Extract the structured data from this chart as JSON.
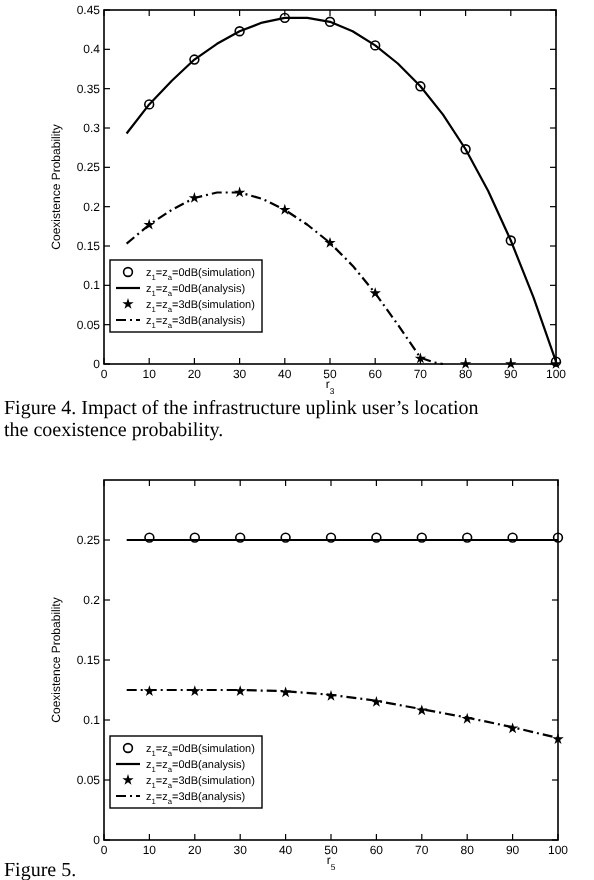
{
  "chart_data": [
    {
      "type": "line",
      "xlabel": "r$_{3}$",
      "ylabel": "Coexistence Probability",
      "xlim": [
        0,
        100
      ],
      "ylim": [
        0,
        0.45
      ],
      "xticks": [
        0,
        10,
        20,
        30,
        40,
        50,
        60,
        70,
        80,
        90,
        100
      ],
      "yticks": [
        0,
        0.05,
        0.1,
        0.15,
        0.2,
        0.25,
        0.3,
        0.35,
        0.4,
        0.45
      ],
      "legend": "bottom left",
      "annotations": [
        "Figure 4. Impact of the infrastructure uplink user’s location",
        "the coexistence probability."
      ],
      "series": [
        {
          "name": "z$_{1}$=z$_{a}$=0dB(simulation)",
          "type": "scatter",
          "marker": "circle",
          "color": "#000000",
          "x": [
            10,
            20,
            30,
            40,
            50,
            60,
            70,
            80,
            90,
            100
          ],
          "values": [
            0.33,
            0.387,
            0.423,
            0.44,
            0.435,
            0.405,
            0.353,
            0.273,
            0.157,
            0.003
          ]
        },
        {
          "name": "z$_{1}$=z$_{a}$=0dB(analysis)",
          "type": "line",
          "line_style": "solid",
          "color": "#000000",
          "x": [
            5,
            10,
            15,
            20,
            25,
            30,
            35,
            40,
            45,
            50,
            55,
            60,
            65,
            70,
            75,
            80,
            85,
            90,
            95,
            100
          ],
          "values": [
            0.293,
            0.33,
            0.36,
            0.387,
            0.407,
            0.423,
            0.434,
            0.44,
            0.44,
            0.435,
            0.423,
            0.405,
            0.382,
            0.353,
            0.317,
            0.273,
            0.22,
            0.157,
            0.085,
            0.003
          ]
        },
        {
          "name": "z$_{1}$=z$_{a}$=3dB(simulation)",
          "type": "scatter",
          "marker": "star",
          "color": "#000000",
          "x": [
            10,
            20,
            30,
            40,
            50,
            60,
            70,
            80,
            90,
            100
          ],
          "values": [
            0.177,
            0.211,
            0.218,
            0.196,
            0.154,
            0.09,
            0.007,
            0,
            0,
            0
          ]
        },
        {
          "name": "z$_{1}$=z$_{a}$=3dB(analysis)",
          "type": "line",
          "line_style": "dashed",
          "color": "#000000",
          "x": [
            5,
            10,
            15,
            20,
            25,
            30,
            35,
            40,
            45,
            50,
            55,
            60,
            65,
            70,
            73,
            75
          ],
          "values": [
            0.153,
            0.177,
            0.196,
            0.211,
            0.218,
            0.218,
            0.21,
            0.196,
            0.177,
            0.154,
            0.125,
            0.09,
            0.05,
            0.008,
            0.002,
            0
          ]
        }
      ]
    },
    {
      "type": "line",
      "xlabel": "r$_{5}$",
      "ylabel": "Coexistence Probability",
      "xlim": [
        0,
        100
      ],
      "ylim": [
        0,
        0.3
      ],
      "xticks": [
        0,
        10,
        20,
        30,
        40,
        50,
        60,
        70,
        80,
        90,
        100
      ],
      "yticks": [
        0,
        0.05,
        0.1,
        0.15,
        0.2,
        0.25
      ],
      "legend": "bottom left",
      "annotations": [
        "Figure 5."
      ],
      "series": [
        {
          "name": "z$_{1}$=z$_{a}$=0dB(simulation)",
          "type": "scatter",
          "marker": "circle",
          "color": "#000000",
          "x": [
            10,
            20,
            30,
            40,
            50,
            60,
            70,
            80,
            90,
            100
          ],
          "values": [
            0.252,
            0.252,
            0.252,
            0.252,
            0.252,
            0.252,
            0.252,
            0.252,
            0.252,
            0.252
          ]
        },
        {
          "name": "z$_{1}$=z$_{a}$=0dB(analysis)",
          "type": "line",
          "line_style": "solid",
          "color": "#000000",
          "x": [
            5,
            100
          ],
          "values": [
            0.25,
            0.25
          ]
        },
        {
          "name": "z$_{1}$=z$_{a}$=3dB(simulation)",
          "type": "scatter",
          "marker": "star",
          "color": "#000000",
          "x": [
            10,
            20,
            30,
            40,
            50,
            60,
            70,
            80,
            90,
            100
          ],
          "values": [
            0.124,
            0.124,
            0.124,
            0.123,
            0.12,
            0.115,
            0.108,
            0.101,
            0.093,
            0.084
          ]
        },
        {
          "name": "z$_{1}$=z$_{a}$=3dB(analysis)",
          "type": "line",
          "line_style": "dashed",
          "color": "#000000",
          "x": [
            5,
            10,
            20,
            30,
            40,
            50,
            60,
            70,
            80,
            90,
            100
          ],
          "values": [
            0.125,
            0.125,
            0.125,
            0.125,
            0.124,
            0.121,
            0.116,
            0.109,
            0.102,
            0.094,
            0.085
          ]
        }
      ]
    }
  ]
}
